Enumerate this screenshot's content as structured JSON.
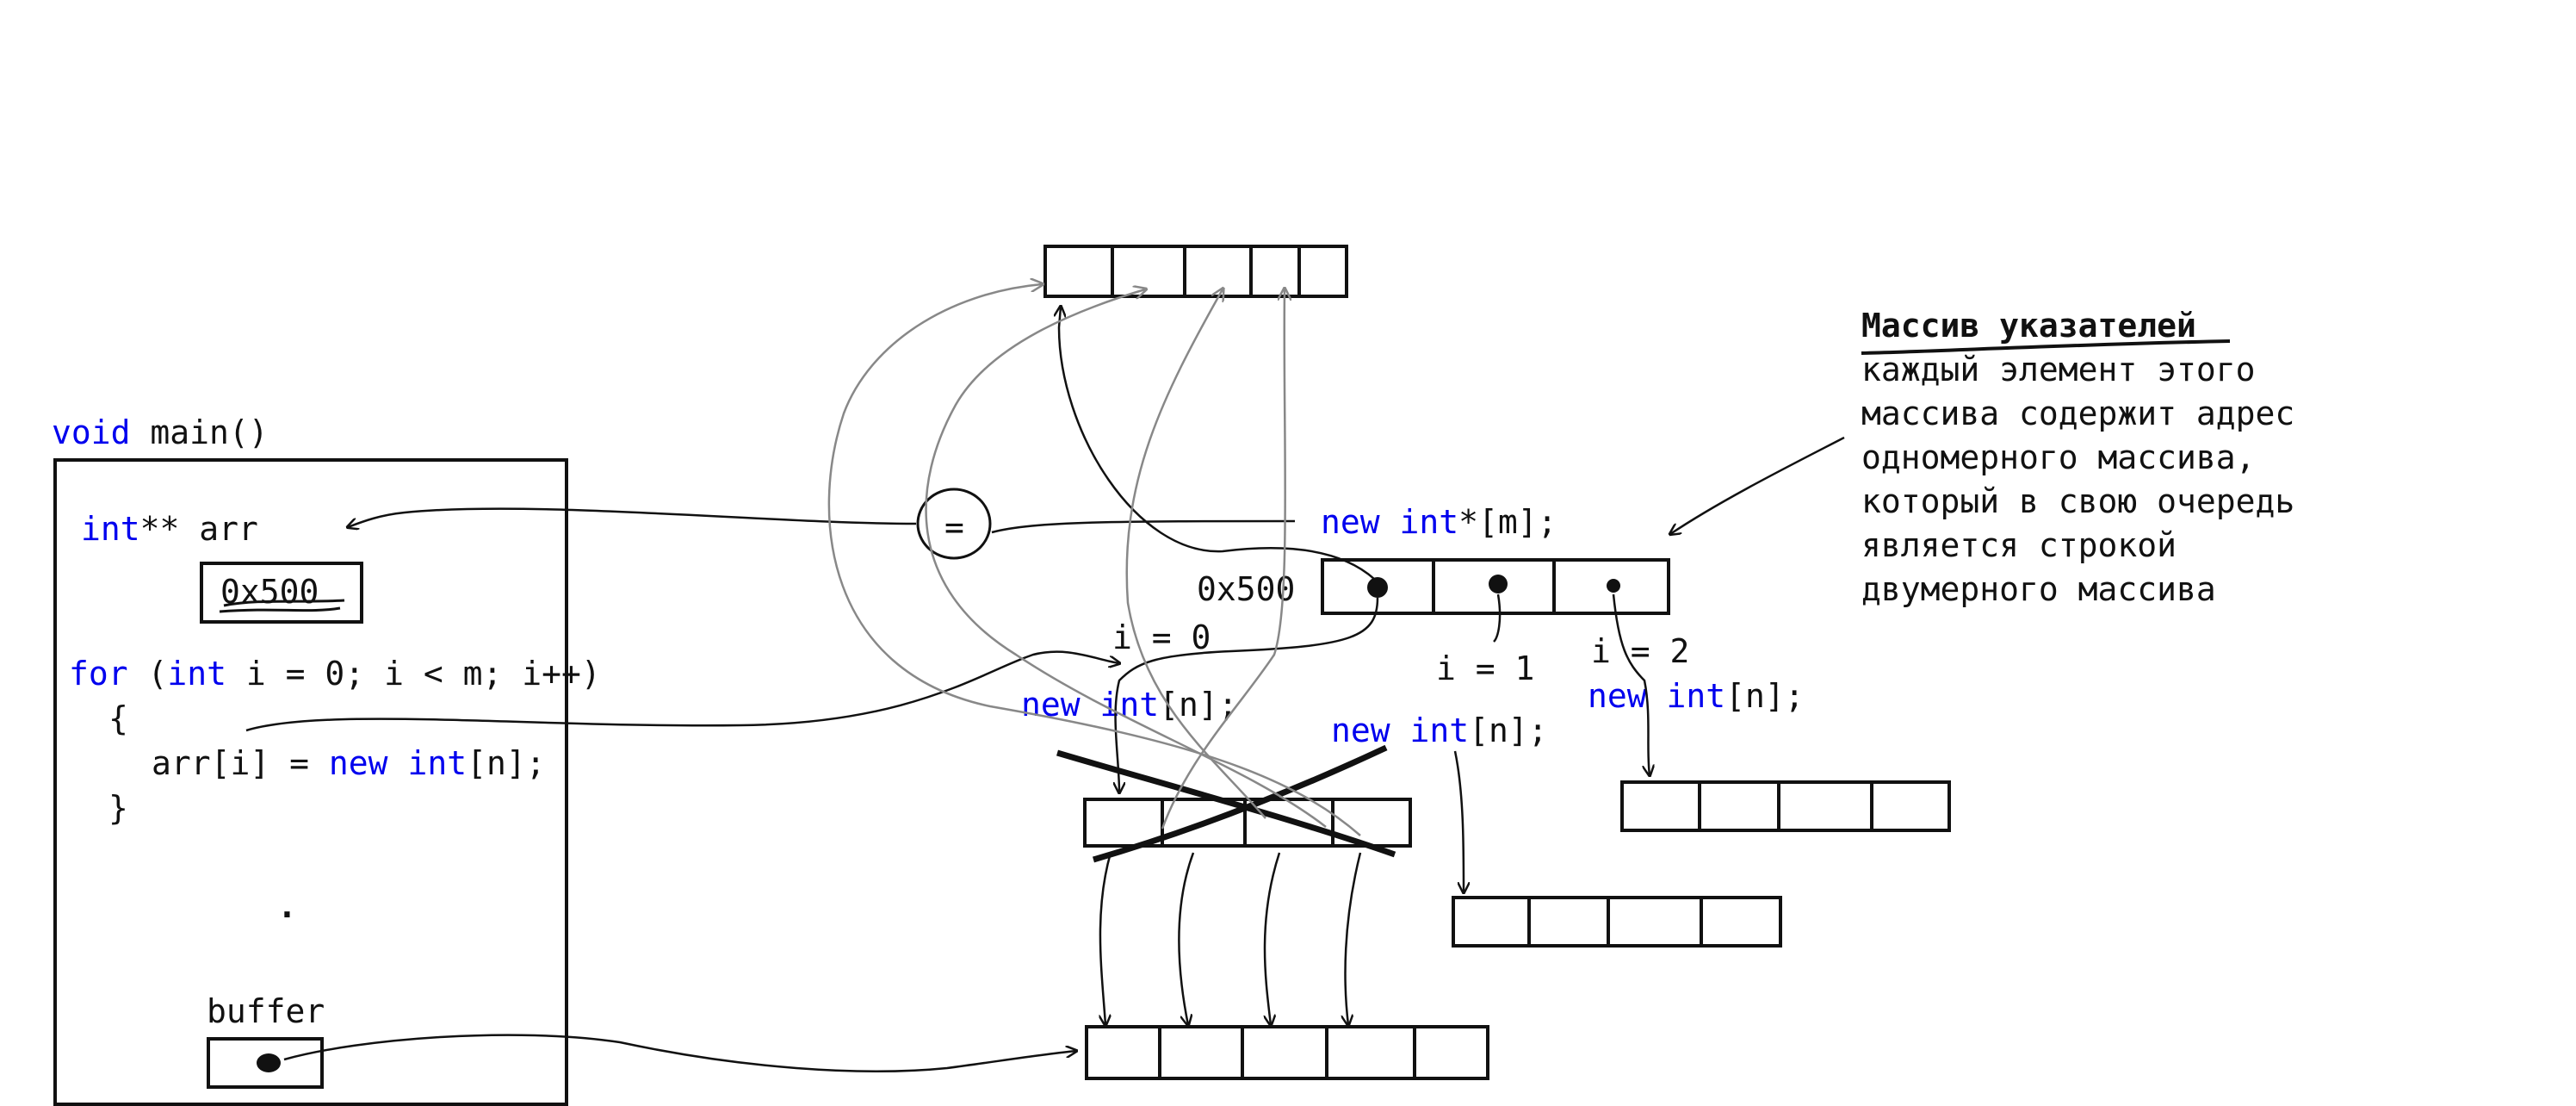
{
  "function_header": {
    "keyword": "void",
    "name": "main()"
  },
  "code": {
    "decl_type": "int",
    "decl_rest": "** arr",
    "arr_value": "0x500",
    "for_keyword": "for",
    "for_open": " (",
    "for_int": "int",
    "for_rest": " i = 0; i < m; i++)",
    "brace_open": "{",
    "assign_lhs": "arr[i] = ",
    "assign_new": "new",
    "assign_int": "int",
    "assign_rest": "[n];",
    "brace_close": "}",
    "dots": ".",
    "buffer_label": "buffer"
  },
  "diagram": {
    "equals": "=",
    "new_pointer_array": {
      "new": "new",
      "type": "int",
      "rest": "*[m];"
    },
    "pointer_array_address": "0x500",
    "iterations": [
      {
        "label": "i = 0",
        "new": "new",
        "type": "int",
        "rest": "[n];"
      },
      {
        "label": "i = 1",
        "new": "new",
        "type": "int",
        "rest": "[n];"
      },
      {
        "label": "i = 2",
        "new": "new",
        "type": "int",
        "rest": "[n];"
      }
    ]
  },
  "annotation": {
    "title": "Массив указателей",
    "lines": [
      "каждый элемент этого",
      "массива содержит адрес",
      "одномерного массива,",
      "который в свою очередь",
      "является строкой",
      "двумерного массива"
    ]
  },
  "colors": {
    "keyword": "#0000ee",
    "ink": "#111111",
    "pencil": "#888888"
  }
}
